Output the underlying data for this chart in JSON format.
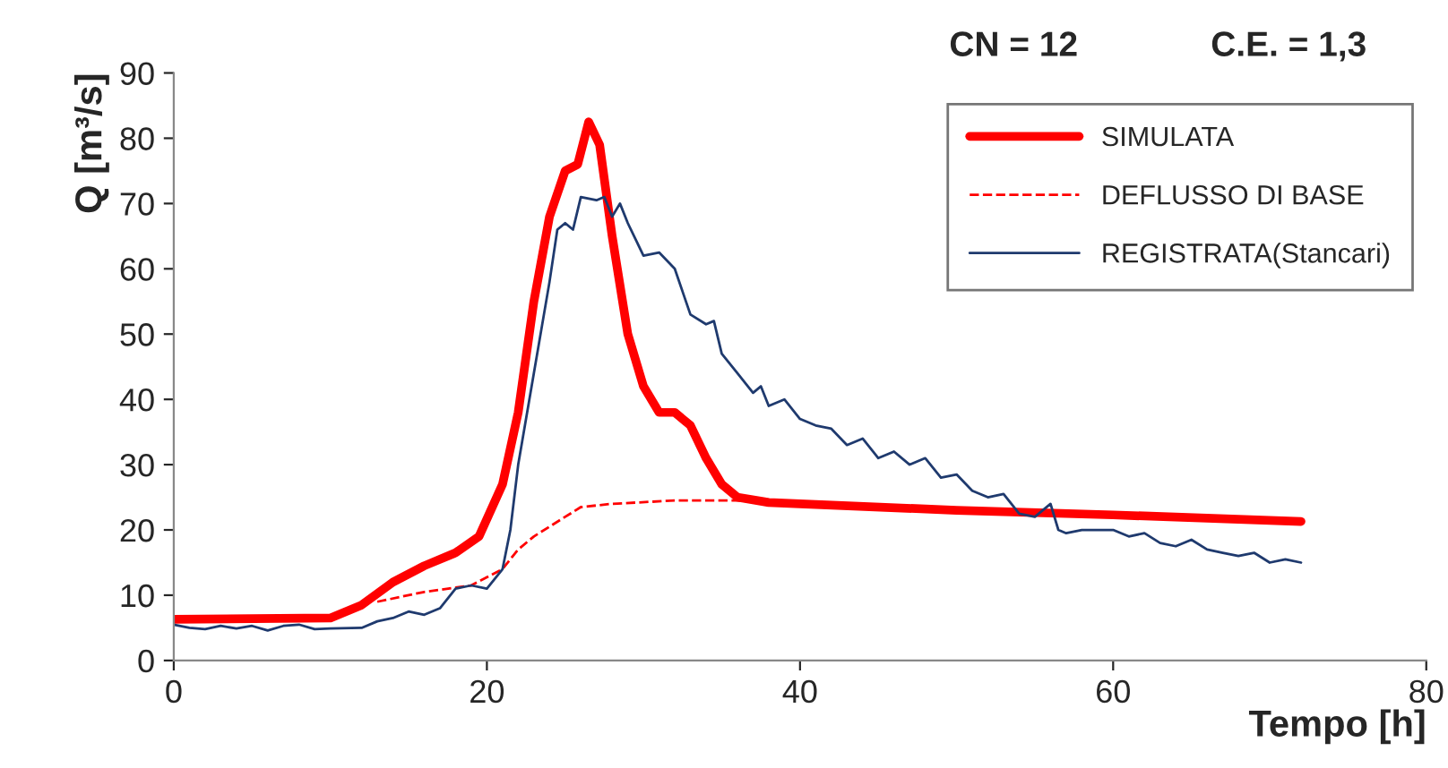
{
  "chart_data": {
    "type": "line",
    "xlabel": "Tempo [h]",
    "ylabel": "Q [m³/s]",
    "annotations": [
      "CN = 12",
      "C.E. = 1,3"
    ],
    "xlim": [
      0,
      80
    ],
    "xticks": [
      0,
      20,
      40,
      60,
      80
    ],
    "ylim": [
      0,
      90
    ],
    "yticks": [
      0,
      10,
      20,
      30,
      40,
      50,
      60,
      70,
      80,
      90
    ],
    "grid": false,
    "legend": "top right",
    "marker": "none",
    "series": [
      {
        "name": "SIMULATA",
        "color": "#ff0000",
        "line_style": "solid",
        "x": [
          0,
          10,
          12,
          14,
          16,
          18,
          19.5,
          21,
          22,
          23,
          24,
          25,
          25.8,
          26.5,
          27.2,
          28,
          29,
          30,
          31,
          32,
          33,
          34,
          35,
          36,
          38,
          40,
          50,
          60,
          72
        ],
        "values": [
          6.3,
          6.5,
          8.5,
          12,
          14.5,
          16.5,
          19,
          27,
          38,
          55,
          68,
          75,
          76,
          82.5,
          79,
          65,
          50,
          42,
          38,
          38,
          36,
          31,
          27,
          25,
          24.2,
          24,
          23,
          22.3,
          21.3
        ]
      },
      {
        "name": "DEFLUSSO DI BASE",
        "color": "#ff0000",
        "line_style": "dashed",
        "x": [
          13,
          16,
          19,
          21,
          22,
          23,
          24,
          25,
          26,
          28,
          32,
          36,
          38
        ],
        "values": [
          9,
          10.5,
          11.5,
          14,
          17,
          19,
          20.5,
          22,
          23.5,
          24,
          24.5,
          24.5,
          24.2
        ]
      },
      {
        "name": "REGISTRATA(Stancari)",
        "color": "#1f3a6e",
        "line_style": "solid",
        "x": [
          0,
          1,
          2,
          3,
          4,
          5,
          6,
          7,
          8,
          9,
          10,
          12,
          13,
          14,
          15,
          16,
          17,
          18,
          19,
          20,
          21,
          21.5,
          22,
          23,
          24,
          24.5,
          25,
          25.5,
          26,
          27,
          27.5,
          28,
          28.5,
          29,
          30,
          31,
          32,
          33,
          34,
          34.5,
          35,
          36,
          37,
          37.5,
          38,
          39,
          40,
          41,
          42,
          43,
          44,
          45,
          46,
          47,
          48,
          49,
          50,
          51,
          52,
          53,
          54,
          55,
          56,
          56.5,
          57,
          58,
          60,
          61,
          62,
          63,
          64,
          65,
          66,
          67,
          68,
          69,
          70,
          71,
          72
        ],
        "values": [
          5.5,
          5,
          4.8,
          5.3,
          4.9,
          5.3,
          4.6,
          5.3,
          5.5,
          4.8,
          4.9,
          5,
          6,
          6.5,
          7.5,
          7,
          8,
          11,
          11.5,
          11,
          14,
          20,
          30,
          44,
          58,
          66,
          67,
          66,
          71,
          70.5,
          71,
          68,
          70,
          67,
          62,
          62.5,
          60,
          53,
          51.5,
          52,
          47,
          44,
          41,
          42,
          39,
          40,
          37,
          36,
          35.5,
          33,
          34,
          31,
          32,
          30,
          31,
          28,
          28.5,
          26,
          25,
          25.5,
          22.5,
          22,
          24,
          20,
          19.5,
          20,
          20,
          19,
          19.5,
          18,
          17.5,
          18.5,
          17,
          16.5,
          16,
          16.5,
          15,
          15.5,
          15
        ]
      }
    ]
  }
}
